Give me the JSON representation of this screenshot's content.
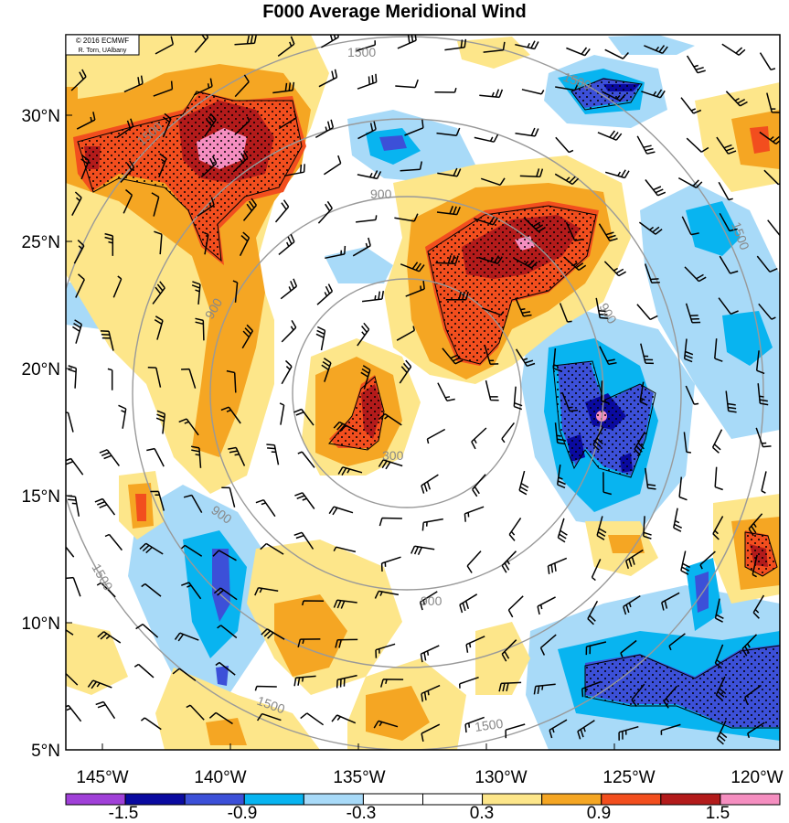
{
  "title": "F000 Average Meridional Wind",
  "credit": {
    "line1": "© 2016 ECMWF",
    "line2": "R. Torn, UAlbany"
  },
  "lat_labels": [
    "30°N",
    "25°N",
    "20°N",
    "15°N",
    "10°N",
    "5°N"
  ],
  "lon_labels": [
    "145°W",
    "140°W",
    "135°W",
    "130°W",
    "125°W",
    "120°W"
  ],
  "contour_labels": [
    "300",
    "900",
    "900",
    "900",
    "900",
    "900",
    "1500",
    "1500",
    "1500",
    "1500",
    "1500",
    "1500",
    "1500"
  ],
  "colorbar": {
    "colors": [
      "#a040d8",
      "#0a0aa0",
      "#3c50d8",
      "#08b4f0",
      "#a8daf8",
      "#ffffff",
      "#ffffff",
      "#fde68a",
      "#f5a623",
      "#f24e1e",
      "#b31b1b",
      "#f58ec0"
    ],
    "tick_labels": [
      "-1.5",
      "-0.9",
      "-0.3",
      "0.3",
      "0.9",
      "1.5"
    ]
  }
}
